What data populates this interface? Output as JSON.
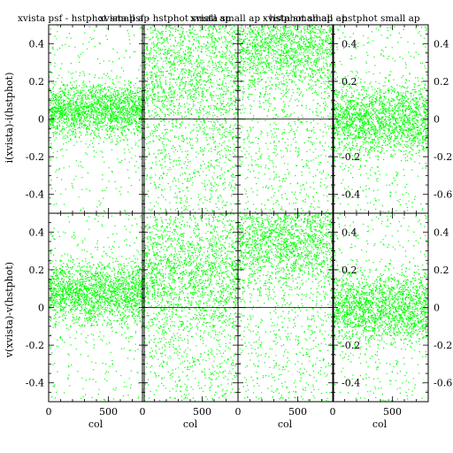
{
  "chart_data": {
    "type": "scatter",
    "point_color": "#00ff00",
    "titles": [
      "xvista psf - hstphot small ap",
      "xvista psf - hstphot small ap",
      "xvista small ap - hstphot small ap",
      "xvista small ap - hstphot small ap"
    ],
    "ylabels": [
      "i(xvista)-i(hstphot)",
      "v(xvista)-v(hstphot)"
    ],
    "xlabel": "col",
    "xlim": [
      0,
      800
    ],
    "ylim": [
      -0.5,
      0.5
    ],
    "x_ticks": [
      "0",
      "500"
    ],
    "y_ticks_left": [
      "-0.4",
      "-0.2",
      "0",
      "0.2",
      "0.4"
    ],
    "y_ticks_right": [
      "-0.6",
      "-0.4",
      "-0.2",
      "0",
      "0.2",
      "0.4"
    ],
    "panels": [
      {
        "id": "top-1",
        "row": 0,
        "col": 0,
        "ylim": [
          -0.5,
          0.5
        ],
        "center": 0.05,
        "spread": 0.07,
        "outlier_frac": 0.15,
        "hline": false,
        "right_axis": false
      },
      {
        "id": "top-2",
        "row": 0,
        "col": 1,
        "ylim": [
          -0.5,
          0.5
        ],
        "center": 0.25,
        "spread": 0.2,
        "outlier_frac": 0.45,
        "hline": true,
        "right_axis": false
      },
      {
        "id": "top-3",
        "row": 0,
        "col": 2,
        "ylim": [
          -0.5,
          0.5
        ],
        "center": 0.38,
        "spread": 0.12,
        "outlier_frac": 0.35,
        "hline": true,
        "right_axis": false
      },
      {
        "id": "top-4",
        "row": 0,
        "col": 3,
        "ylim": [
          -0.5,
          0.5
        ],
        "center": 0.0,
        "spread": 0.09,
        "outlier_frac": 0.2,
        "hline": false,
        "right_axis": true
      },
      {
        "id": "bottom-1",
        "row": 1,
        "col": 0,
        "ylim": [
          -0.5,
          0.5
        ],
        "center": 0.08,
        "spread": 0.08,
        "outlier_frac": 0.15,
        "hline": false,
        "right_axis": false
      },
      {
        "id": "bottom-2",
        "row": 1,
        "col": 1,
        "ylim": [
          -0.5,
          0.5
        ],
        "center": 0.18,
        "spread": 0.15,
        "outlier_frac": 0.45,
        "hline": true,
        "right_axis": false
      },
      {
        "id": "bottom-3",
        "row": 1,
        "col": 2,
        "ylim": [
          -0.5,
          0.5
        ],
        "center": 0.35,
        "spread": 0.12,
        "outlier_frac": 0.35,
        "hline": true,
        "right_axis": false
      },
      {
        "id": "bottom-4",
        "row": 1,
        "col": 3,
        "ylim": [
          -0.5,
          0.5
        ],
        "center": 0.0,
        "spread": 0.09,
        "outlier_frac": 0.2,
        "hline": false,
        "right_axis": true
      }
    ]
  }
}
